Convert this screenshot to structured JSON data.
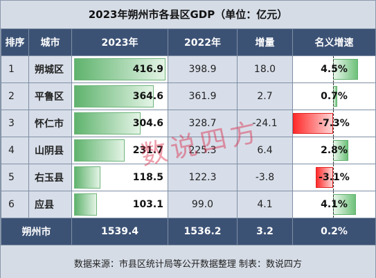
{
  "title": "2023年朔州市各县区GDP（单位：亿元）",
  "headers": {
    "rank": "排序",
    "city": "城市",
    "y2023": "2023年",
    "y2022": "2022年",
    "increase": "增量",
    "growth": "名义增速"
  },
  "rows": [
    {
      "rank": "1",
      "city": "朔城区",
      "y2023": "416.9",
      "y2022": "398.9",
      "increase": "18.0",
      "growth": "4.5%",
      "y2023_value": 416.9,
      "growth_value": 4.5
    },
    {
      "rank": "2",
      "city": "平鲁区",
      "y2023": "364.6",
      "y2022": "361.9",
      "increase": "2.7",
      "growth": "0.7%",
      "y2023_value": 364.6,
      "growth_value": 0.7
    },
    {
      "rank": "3",
      "city": "怀仁市",
      "y2023": "304.6",
      "y2022": "328.7",
      "increase": "-24.1",
      "growth": "-7.3%",
      "y2023_value": 304.6,
      "growth_value": -7.3
    },
    {
      "rank": "4",
      "city": "山阴县",
      "y2023": "231.7",
      "y2022": "225.3",
      "increase": "6.4",
      "growth": "2.8%",
      "y2023_value": 231.7,
      "growth_value": 2.8
    },
    {
      "rank": "5",
      "city": "右玉县",
      "y2023": "118.5",
      "y2022": "122.3",
      "increase": "-3.8",
      "growth": "-3.1%",
      "y2023_value": 118.5,
      "growth_value": -3.1
    },
    {
      "rank": "6",
      "city": "应县",
      "y2023": "103.1",
      "y2022": "99.0",
      "increase": "4.1",
      "growth": "4.1%",
      "y2023_value": 103.1,
      "growth_value": 4.1
    }
  ],
  "total": {
    "city": "朔州市",
    "y2023": "1539.4",
    "y2022": "1536.2",
    "increase": "3.2",
    "growth": "0.2%"
  },
  "footer": "数据来源：市县区统计局等公开数据整理    制表：数说四方",
  "watermark": "数说四方",
  "colors": {
    "header": "#3c5275",
    "cell": "#d7dee9",
    "positive": "#6ec17a",
    "negative": "#ff2a2a"
  }
}
